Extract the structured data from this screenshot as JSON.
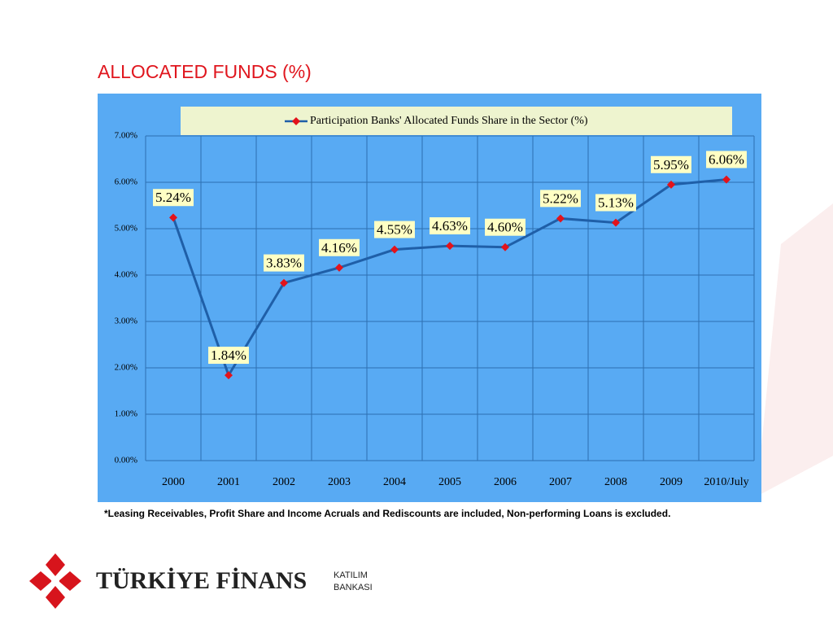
{
  "chart_data": {
    "type": "line",
    "title": "ALLOCATED FUNDS (%)",
    "categories": [
      "2000",
      "2001",
      "2002",
      "2003",
      "2004",
      "2005",
      "2006",
      "2007",
      "2008",
      "2009",
      "2010/July"
    ],
    "series": [
      {
        "name": "Participation Banks' Allocated Funds Share in the Sector (%)",
        "color": "#1f5fa8",
        "marker_color": "#e3131b",
        "values": [
          5.24,
          1.84,
          3.83,
          4.16,
          4.55,
          4.63,
          4.6,
          5.22,
          5.13,
          5.95,
          6.06
        ],
        "value_labels": [
          "5.24%",
          "1.84%",
          "3.83%",
          "4.16%",
          "4.55%",
          "4.63%",
          "4.60%",
          "5.22%",
          "5.13%",
          "5.95%",
          "6.06%"
        ]
      }
    ],
    "ylim": [
      0,
      7
    ],
    "yticks": [
      {
        "value": 0,
        "label": "0.00%"
      },
      {
        "value": 1,
        "label": "1.00%"
      },
      {
        "value": 2,
        "label": "2.00%"
      },
      {
        "value": 3,
        "label": "3.00%"
      },
      {
        "value": 4,
        "label": "4.00%"
      },
      {
        "value": 5,
        "label": "5.00%"
      },
      {
        "value": 6,
        "label": "6.00%"
      },
      {
        "value": 7,
        "label": "7.00%"
      }
    ],
    "grid": true,
    "legend": "top"
  },
  "footnote": "*Leasing Receivables, Profit Share and Income Acruals and Rediscounts are included, Non-performing Loans is excluded.",
  "logo": {
    "name": "TÜRKİYE FİNANS",
    "line1": "KATILIM",
    "line2": "BANKASI"
  }
}
